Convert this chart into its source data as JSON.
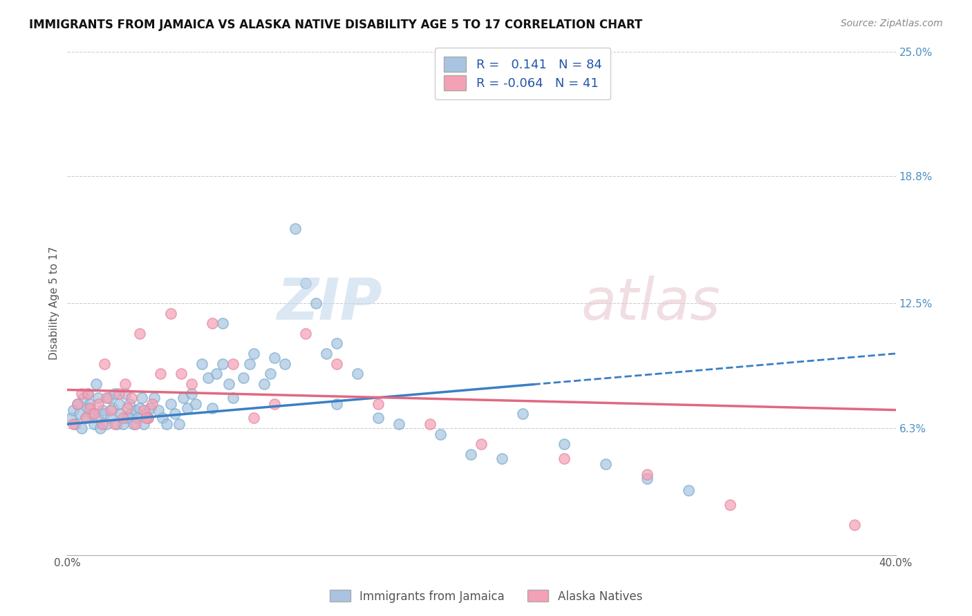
{
  "title": "IMMIGRANTS FROM JAMAICA VS ALASKA NATIVE DISABILITY AGE 5 TO 17 CORRELATION CHART",
  "source": "Source: ZipAtlas.com",
  "ylabel": "Disability Age 5 to 17",
  "x_min": 0.0,
  "x_max": 0.4,
  "y_min": 0.0,
  "y_max": 0.25,
  "y_tick_labels_right": [
    "25.0%",
    "18.8%",
    "12.5%",
    "6.3%"
  ],
  "y_tick_vals_right": [
    0.25,
    0.188,
    0.125,
    0.063
  ],
  "blue_R": 0.141,
  "blue_N": 84,
  "pink_R": -0.064,
  "pink_N": 41,
  "blue_color": "#a8c4e0",
  "pink_color": "#f4a0b5",
  "blue_edge_color": "#7aaed0",
  "pink_edge_color": "#e888a0",
  "blue_line_color": "#3a7fc4",
  "pink_line_color": "#e06880",
  "blue_line_start_y": 0.065,
  "blue_line_end_y": 0.1,
  "pink_line_start_y": 0.082,
  "pink_line_end_y": 0.072,
  "blue_scatter_x": [
    0.002,
    0.003,
    0.004,
    0.005,
    0.006,
    0.007,
    0.008,
    0.009,
    0.01,
    0.01,
    0.011,
    0.012,
    0.013,
    0.014,
    0.015,
    0.015,
    0.016,
    0.017,
    0.018,
    0.019,
    0.02,
    0.021,
    0.022,
    0.023,
    0.024,
    0.025,
    0.026,
    0.027,
    0.028,
    0.029,
    0.03,
    0.031,
    0.032,
    0.033,
    0.034,
    0.035,
    0.036,
    0.037,
    0.038,
    0.039,
    0.04,
    0.042,
    0.044,
    0.046,
    0.048,
    0.05,
    0.052,
    0.054,
    0.056,
    0.058,
    0.06,
    0.062,
    0.065,
    0.068,
    0.07,
    0.072,
    0.075,
    0.078,
    0.08,
    0.085,
    0.088,
    0.09,
    0.095,
    0.098,
    0.1,
    0.105,
    0.11,
    0.115,
    0.12,
    0.125,
    0.13,
    0.14,
    0.15,
    0.16,
    0.18,
    0.195,
    0.21,
    0.22,
    0.24,
    0.26,
    0.28,
    0.3,
    0.13,
    0.075
  ],
  "blue_scatter_y": [
    0.068,
    0.072,
    0.065,
    0.075,
    0.07,
    0.063,
    0.078,
    0.068,
    0.08,
    0.073,
    0.075,
    0.07,
    0.065,
    0.085,
    0.068,
    0.078,
    0.063,
    0.072,
    0.07,
    0.065,
    0.078,
    0.068,
    0.073,
    0.08,
    0.065,
    0.075,
    0.07,
    0.065,
    0.08,
    0.068,
    0.075,
    0.07,
    0.065,
    0.072,
    0.068,
    0.073,
    0.078,
    0.065,
    0.07,
    0.068,
    0.073,
    0.078,
    0.072,
    0.068,
    0.065,
    0.075,
    0.07,
    0.065,
    0.078,
    0.073,
    0.08,
    0.075,
    0.095,
    0.088,
    0.073,
    0.09,
    0.095,
    0.085,
    0.078,
    0.088,
    0.095,
    0.1,
    0.085,
    0.09,
    0.098,
    0.095,
    0.162,
    0.135,
    0.125,
    0.1,
    0.105,
    0.09,
    0.068,
    0.065,
    0.06,
    0.05,
    0.048,
    0.07,
    0.055,
    0.045,
    0.038,
    0.032,
    0.075,
    0.115
  ],
  "pink_scatter_x": [
    0.003,
    0.005,
    0.007,
    0.009,
    0.011,
    0.013,
    0.015,
    0.017,
    0.019,
    0.021,
    0.023,
    0.025,
    0.027,
    0.029,
    0.031,
    0.033,
    0.035,
    0.037,
    0.039,
    0.041,
    0.045,
    0.05,
    0.055,
    0.06,
    0.07,
    0.08,
    0.09,
    0.1,
    0.115,
    0.13,
    0.15,
    0.175,
    0.2,
    0.24,
    0.28,
    0.32,
    0.38,
    0.01,
    0.018,
    0.028,
    0.038
  ],
  "pink_scatter_y": [
    0.065,
    0.075,
    0.08,
    0.068,
    0.073,
    0.07,
    0.075,
    0.065,
    0.078,
    0.072,
    0.065,
    0.08,
    0.068,
    0.073,
    0.078,
    0.065,
    0.11,
    0.072,
    0.068,
    0.075,
    0.09,
    0.12,
    0.09,
    0.085,
    0.115,
    0.095,
    0.068,
    0.075,
    0.11,
    0.095,
    0.075,
    0.065,
    0.055,
    0.048,
    0.04,
    0.025,
    0.015,
    0.08,
    0.095,
    0.085,
    0.068
  ]
}
